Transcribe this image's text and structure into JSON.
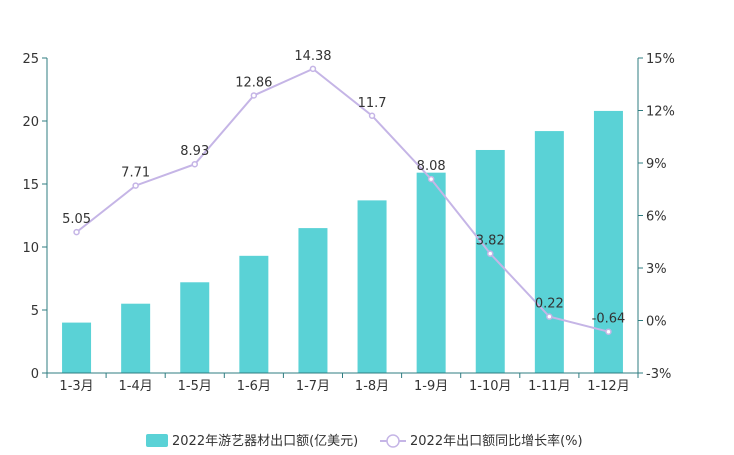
{
  "chart_data": {
    "type": "bar",
    "categories": [
      "1-3月",
      "1-4月",
      "1-5月",
      "1-6月",
      "1-7月",
      "1-8月",
      "1-9月",
      "1-10月",
      "1-11月",
      "1-12月"
    ],
    "series": [
      {
        "name": "2022年游艺器材出口额(亿美元)",
        "type": "bar",
        "axis": "left",
        "color": "#5ad2d6",
        "values": [
          4.0,
          5.5,
          7.2,
          9.3,
          11.5,
          13.7,
          15.9,
          17.7,
          19.2,
          20.8
        ]
      },
      {
        "name": "2022年出口额同比增长率(%)",
        "type": "line",
        "axis": "right",
        "color": "#c5b5e6",
        "values": [
          5.05,
          7.71,
          8.93,
          12.86,
          14.38,
          11.7,
          8.08,
          3.82,
          0.22,
          -0.64
        ],
        "labels": [
          "5.05",
          "7.71",
          "8.93",
          "12.86",
          "14.38",
          "11.7",
          "8.08",
          "3.82",
          "0.22",
          "-0.64"
        ]
      }
    ],
    "y_left": {
      "min": 0,
      "max": 25,
      "ticks": [
        "0",
        "5",
        "10",
        "15",
        "20",
        "25"
      ]
    },
    "y_right": {
      "min": -3,
      "max": 15,
      "ticks": [
        "-3%",
        "0%",
        "3%",
        "6%",
        "9%",
        "12%",
        "15%"
      ]
    },
    "grid": false,
    "legend_position": "bottom"
  }
}
